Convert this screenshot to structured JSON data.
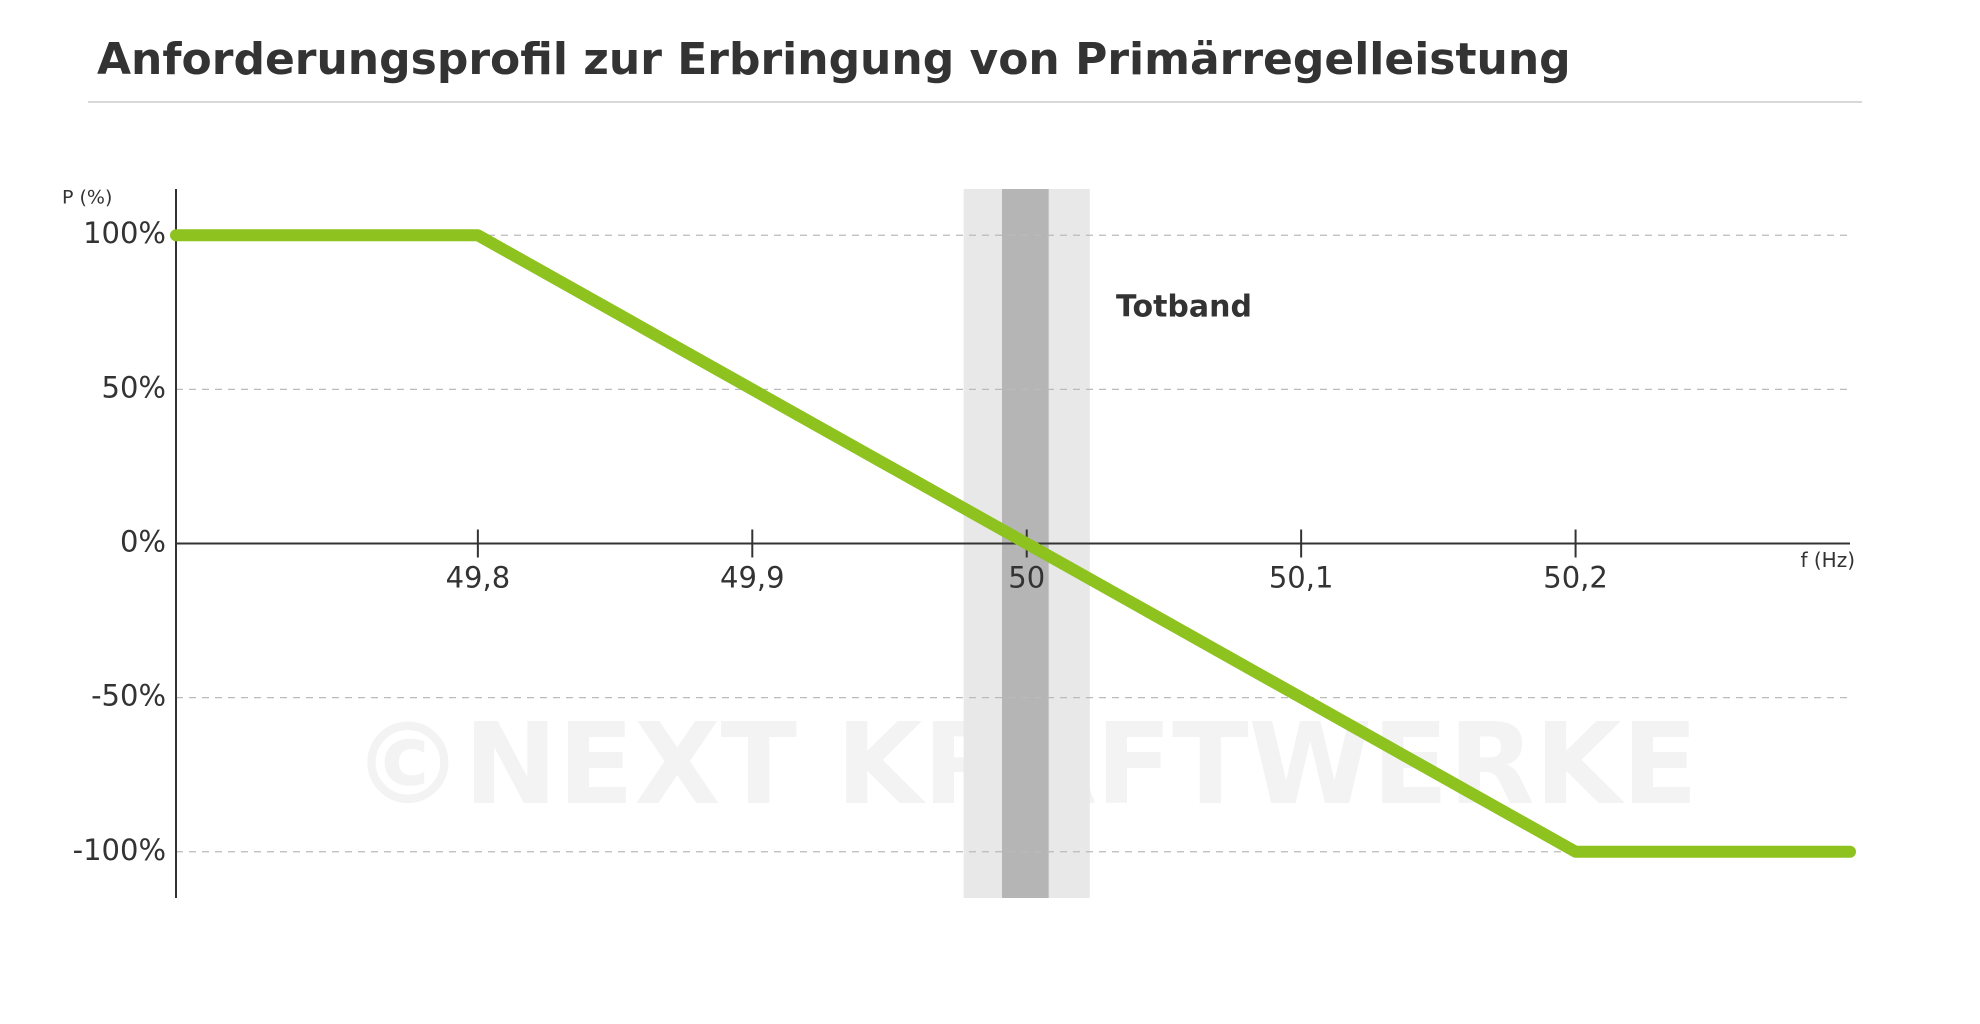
{
  "chart_data": {
    "type": "line",
    "title": "Anforderungsprofil zur Erbringung von Primärregelleistung",
    "y_label": "P (%)",
    "x_label": "f (Hz)",
    "annotation": "Totband",
    "watermark": "©NEXT KRAFTWERKE",
    "x": [
      49.69,
      49.8,
      50.2,
      50.3
    ],
    "series": [
      {
        "name": "Primärregelleistung",
        "color": "#8dc21f",
        "values": [
          100,
          100,
          -100,
          -100
        ]
      }
    ],
    "bands": [
      {
        "from": 49.977,
        "to": 50.023,
        "color": "#e8e8e8"
      },
      {
        "from": 49.991,
        "to": 50.008,
        "color": "#b5b5b5"
      }
    ],
    "xlim": [
      49.69,
      50.3
    ],
    "xticks": [
      {
        "value": 49.8,
        "label": "49,8"
      },
      {
        "value": 49.9,
        "label": "49,9"
      },
      50,
      {
        "value": 50.1,
        "label": "50,1"
      },
      {
        "value": 50.2,
        "label": "50,2"
      }
    ],
    "ylim": [
      -115,
      115
    ],
    "yticks": [
      {
        "value": 100,
        "label": "100%"
      },
      {
        "value": 50,
        "label": "50%"
      },
      {
        "value": 0,
        "label": "0%"
      },
      {
        "value": -50,
        "label": "-50%"
      },
      {
        "value": -100,
        "label": "-100%"
      }
    ],
    "grid": true
  }
}
